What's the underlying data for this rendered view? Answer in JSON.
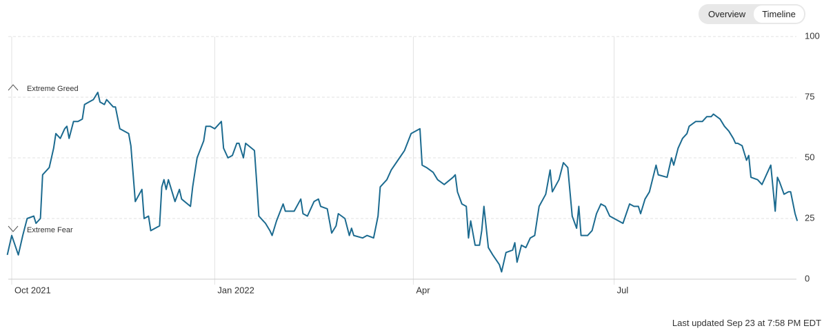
{
  "toggle": [
    "Overview",
    "Timeline"
  ],
  "footer": "Last updated Sep 23 at 7:58 PM EDT",
  "chart_data": {
    "type": "line",
    "color": "#1b6a8f",
    "grid": true,
    "annotations": [
      "Extreme Greed",
      "Extreme Fear"
    ],
    "x": [
      -2,
      0,
      3,
      5,
      7,
      10,
      11,
      13,
      14,
      17,
      19,
      20,
      22,
      24,
      25,
      26,
      28,
      30,
      32,
      33,
      35,
      37,
      39,
      40,
      42,
      43,
      45,
      46,
      47,
      49,
      51,
      53,
      54,
      56,
      59,
      60,
      62,
      63,
      67,
      68,
      69,
      70,
      71,
      72,
      74,
      76,
      77,
      81,
      82,
      84,
      87,
      88,
      90,
      92,
      95,
      96,
      98,
      100,
      102,
      103,
      105,
      106,
      110,
      111,
      112,
      115,
      117,
      118,
      120,
      123,
      124,
      126,
      128,
      131,
      132,
      134,
      137,
      139,
      140,
      143,
      145,
      147,
      148,
      151,
      153,
      154,
      155,
      159,
      161,
      164,
      166,
      167,
      170,
      172,
      175,
      178,
      181,
      185,
      186,
      188,
      191,
      193,
      196,
      200,
      201,
      202,
      204,
      206,
      207,
      208,
      210,
      212,
      213,
      214,
      216,
      218,
      221,
      222,
      224,
      227,
      228,
      229,
      231,
      233,
      235,
      237,
      239,
      242,
      244,
      245,
      248,
      250,
      252,
      254,
      256,
      257,
      258,
      261,
      263,
      265,
      267,
      269,
      271,
      273,
      275,
      277,
      280,
      282,
      284,
      285,
      287,
      289,
      292,
      293,
      297,
      299,
      300,
      302,
      304,
      306,
      307,
      310,
      312,
      313,
      315,
      317,
      318,
      321,
      323,
      325,
      327,
      328,
      329,
      331,
      333,
      334,
      335,
      338,
      340,
      342,
      344,
      346,
      347,
      348,
      350,
      352,
      353,
      355,
      356
    ],
    "values": [
      10,
      18,
      10,
      18,
      25,
      26,
      23,
      25,
      43,
      46,
      54,
      60,
      58,
      62,
      63,
      58,
      65,
      65,
      66,
      72,
      73,
      74,
      77,
      73,
      72,
      74,
      72,
      71,
      71,
      62,
      61,
      60,
      55,
      32,
      37,
      25,
      26,
      20,
      22,
      38,
      41,
      37,
      41,
      38,
      32,
      37,
      33,
      30,
      38,
      50,
      57,
      63,
      63,
      62,
      65,
      54,
      50,
      51,
      56,
      56,
      50,
      56,
      53,
      40,
      26,
      23,
      20,
      18,
      24,
      31,
      28,
      28,
      28,
      33,
      27,
      26,
      32,
      33,
      30,
      29,
      19,
      22,
      27,
      25,
      18,
      21,
      18,
      17,
      18,
      17,
      26,
      38,
      41,
      45,
      49,
      53,
      60,
      62,
      47,
      46,
      44,
      41,
      39,
      42,
      43,
      36,
      31,
      30,
      17,
      24,
      14,
      14,
      20,
      30,
      13,
      10,
      6,
      3,
      11,
      12,
      15,
      7,
      14,
      13,
      17,
      18,
      30,
      35,
      45,
      36,
      41,
      48,
      46,
      26,
      21,
      30,
      18,
      18,
      20,
      27,
      31,
      30,
      26,
      25,
      24,
      23,
      31,
      30,
      30,
      27,
      33,
      36,
      47,
      43,
      42,
      50,
      47,
      54,
      58,
      60,
      63,
      65,
      65,
      65,
      67,
      67,
      68,
      66,
      63,
      61,
      58,
      56,
      56,
      55,
      49,
      51,
      42,
      41,
      39,
      43,
      47,
      28,
      42,
      40,
      35,
      36,
      36,
      27,
      24
    ],
    "xlim": [
      -2,
      357
    ],
    "xticks": [
      {
        "value": 0,
        "label": "Oct 2021"
      },
      {
        "value": 92,
        "label": "Jan 2022"
      },
      {
        "value": 182,
        "label": "Apr"
      },
      {
        "value": 273,
        "label": "Jul"
      }
    ],
    "ylim": [
      0,
      100
    ],
    "yticks": [
      0,
      25,
      50,
      75,
      100
    ]
  }
}
